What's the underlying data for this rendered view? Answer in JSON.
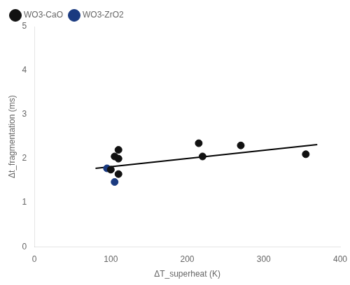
{
  "chart_data": {
    "type": "scatter",
    "xlabel": "ΔT_superheat (K)",
    "ylabel": "Δt_fragmentation (ms)",
    "series": [
      {
        "name": "WO3-CaO",
        "color": "#111111",
        "marker": "circle",
        "x": [
          100,
          105,
          110,
          110,
          110,
          215,
          220,
          270,
          355
        ],
        "values": [
          1.75,
          2.05,
          2.2,
          2.0,
          1.65,
          2.35,
          2.05,
          2.3,
          2.1
        ]
      },
      {
        "name": "WO3-ZrO2",
        "color": "#1a3a80",
        "marker": "circle",
        "x": [
          95,
          105
        ],
        "values": [
          1.78,
          1.47
        ]
      },
      {
        "type": "line",
        "color": "#000000",
        "line_style": "solid",
        "x": [
          80,
          370
        ],
        "values": [
          1.78,
          2.32
        ]
      }
    ],
    "xlim": [
      0,
      400
    ],
    "xticks": [
      0,
      100,
      200,
      300,
      400
    ],
    "ylim": [
      0,
      5
    ],
    "yticks": [
      0,
      1,
      2,
      3,
      4,
      5
    ],
    "grid": false,
    "legend": "upper left"
  }
}
